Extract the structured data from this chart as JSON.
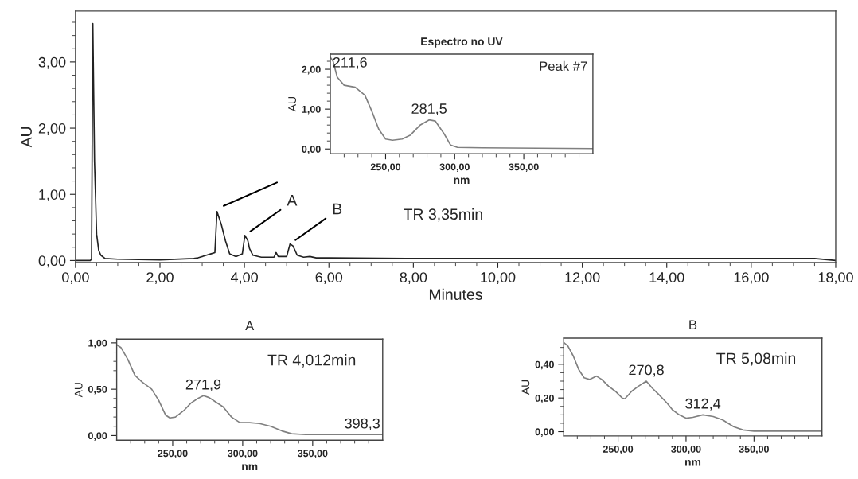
{
  "chart_data": [
    {
      "type": "line",
      "xlabel": "Minutes",
      "ylabel": "AU",
      "x": [
        0,
        0.35,
        0.38,
        0.41,
        0.45,
        0.5,
        0.55,
        0.6,
        0.7,
        1.0,
        2.0,
        2.8,
        2.9,
        3.1,
        3.2,
        3.3,
        3.35,
        3.45,
        3.55,
        3.65,
        3.8,
        3.95,
        4.01,
        4.08,
        4.12,
        4.2,
        4.4,
        4.7,
        4.75,
        4.8,
        5.0,
        5.08,
        5.15,
        5.25,
        5.4,
        5.55,
        5.7,
        6,
        8,
        12,
        17,
        17.5,
        18
      ],
      "series": [
        {
          "color": "#222222",
          "values": [
            0,
            0,
            0.02,
            3.58,
            1.5,
            0.4,
            0.15,
            0.08,
            0.03,
            0.02,
            0.01,
            0.03,
            0.04,
            0.08,
            0.1,
            0.12,
            0.74,
            0.55,
            0.3,
            0.1,
            0.06,
            0.1,
            0.38,
            0.3,
            0.18,
            0.08,
            0.05,
            0.05,
            0.12,
            0.06,
            0.06,
            0.25,
            0.22,
            0.08,
            0.05,
            0.06,
            0.04,
            0.04,
            0.03,
            0.03,
            0.03,
            0.03,
            0
          ]
        }
      ],
      "xlim": [
        0,
        18
      ],
      "ylim": [
        -0.03,
        3.77
      ],
      "xticks": [
        {
          "value": 0,
          "label": "0,00"
        },
        {
          "value": 2,
          "label": "2,00"
        },
        {
          "value": 4,
          "label": "4,00"
        },
        {
          "value": 6,
          "label": "6,00"
        },
        {
          "value": 8,
          "label": "8,00"
        },
        {
          "value": 10,
          "label": "10,00"
        },
        {
          "value": 12,
          "label": "12,00"
        },
        {
          "value": 14,
          "label": "14,00"
        },
        {
          "value": 16,
          "label": "16,00"
        },
        {
          "value": 18,
          "label": "18,00"
        },
        {
          "value": 0.5,
          "label": null
        },
        {
          "value": 1,
          "label": null
        },
        {
          "value": 1.5,
          "label": null
        },
        {
          "value": 2.5,
          "label": null
        },
        {
          "value": 3,
          "label": null
        },
        {
          "value": 3.5,
          "label": null
        },
        {
          "value": 4.5,
          "label": null
        },
        {
          "value": 5,
          "label": null
        },
        {
          "value": 5.5,
          "label": null
        },
        {
          "value": 6.5,
          "label": null
        },
        {
          "value": 7,
          "label": null
        },
        {
          "value": 7.5,
          "label": null
        },
        {
          "value": 8.5,
          "label": null
        },
        {
          "value": 9,
          "label": null
        },
        {
          "value": 9.5,
          "label": null
        },
        {
          "value": 10.5,
          "label": null
        },
        {
          "value": 11,
          "label": null
        },
        {
          "value": 11.5,
          "label": null
        },
        {
          "value": 12.5,
          "label": null
        },
        {
          "value": 13,
          "label": null
        },
        {
          "value": 13.5,
          "label": null
        },
        {
          "value": 14.5,
          "label": null
        },
        {
          "value": 15,
          "label": null
        },
        {
          "value": 15.5,
          "label": null
        },
        {
          "value": 16.5,
          "label": null
        },
        {
          "value": 17,
          "label": null
        },
        {
          "value": 17.5,
          "label": null
        }
      ],
      "yticks": [
        {
          "value": 0,
          "label": "0,00"
        },
        {
          "value": 1,
          "label": "1,00"
        },
        {
          "value": 2,
          "label": "2,00"
        },
        {
          "value": 3,
          "label": "3,00"
        },
        {
          "value": 0.2,
          "label": null
        },
        {
          "value": 0.4,
          "label": null
        },
        {
          "value": 0.6,
          "label": null
        },
        {
          "value": 0.8,
          "label": null
        },
        {
          "value": 1.2,
          "label": null
        },
        {
          "value": 1.4,
          "label": null
        },
        {
          "value": 1.6,
          "label": null
        },
        {
          "value": 1.8,
          "label": null
        },
        {
          "value": 2.2,
          "label": null
        },
        {
          "value": 2.4,
          "label": null
        },
        {
          "value": 2.6,
          "label": null
        },
        {
          "value": 2.8,
          "label": null
        },
        {
          "value": 3.2,
          "label": null
        },
        {
          "value": 3.4,
          "label": null
        },
        {
          "value": 3.6,
          "label": null
        }
      ],
      "annotations": [
        {
          "text": "A",
          "x": 4.01,
          "y": 0.38
        },
        {
          "text": "B",
          "x": 5.08,
          "y": 0.25
        }
      ]
    },
    {
      "type": "line",
      "title": "Espectro no UV",
      "xlabel": "nm",
      "ylabel": "AU",
      "x": [
        210,
        212,
        215,
        220,
        228,
        235,
        240,
        245,
        250,
        255,
        262,
        268,
        275,
        281.5,
        286,
        292,
        297,
        302,
        320,
        400
      ],
      "series": [
        {
          "color": "#808080",
          "values": [
            2.3,
            2.2,
            1.8,
            1.6,
            1.55,
            1.35,
            0.95,
            0.5,
            0.25,
            0.22,
            0.25,
            0.35,
            0.6,
            0.73,
            0.7,
            0.4,
            0.1,
            0.04,
            0.03,
            0.01
          ]
        }
      ],
      "xlim": [
        210,
        400
      ],
      "ylim": [
        -0.12,
        2.38
      ],
      "xticks": [
        {
          "value": 250,
          "label": "250,00"
        },
        {
          "value": 300,
          "label": "300,00"
        },
        {
          "value": 350,
          "label": "350,00"
        },
        {
          "value": 220,
          "label": null
        },
        {
          "value": 230,
          "label": null
        },
        {
          "value": 240,
          "label": null
        },
        {
          "value": 260,
          "label": null
        },
        {
          "value": 270,
          "label": null
        },
        {
          "value": 280,
          "label": null
        },
        {
          "value": 290,
          "label": null
        },
        {
          "value": 310,
          "label": null
        },
        {
          "value": 320,
          "label": null
        },
        {
          "value": 330,
          "label": null
        },
        {
          "value": 340,
          "label": null
        },
        {
          "value": 360,
          "label": null
        },
        {
          "value": 370,
          "label": null
        },
        {
          "value": 380,
          "label": null
        },
        {
          "value": 390,
          "label": null
        }
      ],
      "yticks": [
        {
          "value": 0,
          "label": "0,00"
        },
        {
          "value": 1,
          "label": "1,00"
        },
        {
          "value": 2,
          "label": "2,00"
        },
        {
          "value": 0.2,
          "label": null
        },
        {
          "value": 0.4,
          "label": null
        },
        {
          "value": 0.6,
          "label": null
        },
        {
          "value": 0.8,
          "label": null
        },
        {
          "value": 1.2,
          "label": null
        },
        {
          "value": 1.4,
          "label": null
        },
        {
          "value": 1.6,
          "label": null
        },
        {
          "value": 1.8,
          "label": null
        },
        {
          "value": 2.2,
          "label": null
        }
      ],
      "annotations": [
        {
          "text": "211,6",
          "x": 211.6,
          "y": 2.2
        },
        {
          "text": "281,5",
          "x": 281.5,
          "y": 0.73
        },
        "Peak #7",
        "TR 3,35min"
      ]
    },
    {
      "type": "line",
      "title": "A",
      "xlabel": "nm",
      "ylabel": "AU",
      "x": [
        210,
        213,
        218,
        223,
        228,
        235,
        240,
        245,
        248,
        252,
        258,
        263,
        268,
        272,
        276,
        281,
        286,
        292,
        298,
        305,
        312,
        320,
        328,
        335,
        345,
        360,
        400
      ],
      "series": [
        {
          "color": "#808080",
          "values": [
            0.98,
            0.95,
            0.82,
            0.65,
            0.58,
            0.5,
            0.38,
            0.22,
            0.19,
            0.2,
            0.27,
            0.35,
            0.4,
            0.43,
            0.41,
            0.36,
            0.31,
            0.2,
            0.14,
            0.14,
            0.13,
            0.1,
            0.05,
            0.02,
            0.01,
            0.01,
            0.01
          ]
        }
      ],
      "xlim": [
        210,
        400
      ],
      "ylim": [
        -0.05,
        1.04
      ],
      "xticks": [
        {
          "value": 250,
          "label": "250,00"
        },
        {
          "value": 300,
          "label": "300,00"
        },
        {
          "value": 350,
          "label": "350,00"
        },
        {
          "value": 220,
          "label": null
        },
        {
          "value": 230,
          "label": null
        },
        {
          "value": 240,
          "label": null
        },
        {
          "value": 260,
          "label": null
        },
        {
          "value": 270,
          "label": null
        },
        {
          "value": 280,
          "label": null
        },
        {
          "value": 290,
          "label": null
        },
        {
          "value": 310,
          "label": null
        },
        {
          "value": 320,
          "label": null
        },
        {
          "value": 330,
          "label": null
        },
        {
          "value": 340,
          "label": null
        },
        {
          "value": 360,
          "label": null
        },
        {
          "value": 370,
          "label": null
        },
        {
          "value": 380,
          "label": null
        },
        {
          "value": 390,
          "label": null
        }
      ],
      "yticks": [
        {
          "value": 0,
          "label": "0,00"
        },
        {
          "value": 0.5,
          "label": "0,50"
        },
        {
          "value": 1,
          "label": "1,00"
        },
        {
          "value": 0.1,
          "label": null
        },
        {
          "value": 0.2,
          "label": null
        },
        {
          "value": 0.3,
          "label": null
        },
        {
          "value": 0.4,
          "label": null
        },
        {
          "value": 0.6,
          "label": null
        },
        {
          "value": 0.7,
          "label": null
        },
        {
          "value": 0.8,
          "label": null
        },
        {
          "value": 0.9,
          "label": null
        }
      ],
      "annotations": [
        {
          "text": "271,9",
          "x": 271.9,
          "y": 0.43
        },
        {
          "text": "398,3",
          "x": 398.3,
          "y": 0.01
        },
        "TR 4,012min"
      ]
    },
    {
      "type": "line",
      "title": "B",
      "ylabel": "AU",
      "xlabel": "nm",
      "x": [
        210,
        213,
        217,
        221,
        225,
        229,
        234,
        238,
        243,
        248,
        253,
        255,
        260,
        265,
        270.8,
        275,
        280,
        286,
        290,
        295,
        300,
        305,
        312.4,
        320,
        327,
        335,
        342,
        350,
        400
      ],
      "series": [
        {
          "color": "#808080",
          "values": [
            0.53,
            0.51,
            0.45,
            0.37,
            0.32,
            0.31,
            0.33,
            0.31,
            0.27,
            0.24,
            0.2,
            0.195,
            0.24,
            0.27,
            0.3,
            0.26,
            0.22,
            0.17,
            0.13,
            0.1,
            0.08,
            0.085,
            0.1,
            0.09,
            0.07,
            0.03,
            0.01,
            0.003,
            0.003
          ]
        }
      ],
      "xlim": [
        210,
        400
      ],
      "ylim": [
        -0.025,
        0.555
      ],
      "xticks": [
        {
          "value": 250,
          "label": "250,00"
        },
        {
          "value": 300,
          "label": "300,00"
        },
        {
          "value": 350,
          "label": "350,00"
        },
        {
          "value": 220,
          "label": null
        },
        {
          "value": 230,
          "label": null
        },
        {
          "value": 240,
          "label": null
        },
        {
          "value": 260,
          "label": null
        },
        {
          "value": 270,
          "label": null
        },
        {
          "value": 280,
          "label": null
        },
        {
          "value": 290,
          "label": null
        },
        {
          "value": 310,
          "label": null
        },
        {
          "value": 320,
          "label": null
        },
        {
          "value": 330,
          "label": null
        },
        {
          "value": 340,
          "label": null
        },
        {
          "value": 360,
          "label": null
        },
        {
          "value": 370,
          "label": null
        },
        {
          "value": 380,
          "label": null
        },
        {
          "value": 390,
          "label": null
        }
      ],
      "yticks": [
        {
          "value": 0,
          "label": "0,00"
        },
        {
          "value": 0.2,
          "label": "0,20"
        },
        {
          "value": 0.4,
          "label": "0,40"
        },
        {
          "value": 0.05,
          "label": null
        },
        {
          "value": 0.1,
          "label": null
        },
        {
          "value": 0.15,
          "label": null
        },
        {
          "value": 0.25,
          "label": null
        },
        {
          "value": 0.3,
          "label": null
        },
        {
          "value": 0.35,
          "label": null
        },
        {
          "value": 0.45,
          "label": null
        },
        {
          "value": 0.5,
          "label": null
        }
      ],
      "annotations": [
        {
          "text": "270,8",
          "x": 270.8,
          "y": 0.3
        },
        {
          "text": "312,4",
          "x": 312.4,
          "y": 0.1
        },
        "TR 5,08min"
      ]
    }
  ]
}
